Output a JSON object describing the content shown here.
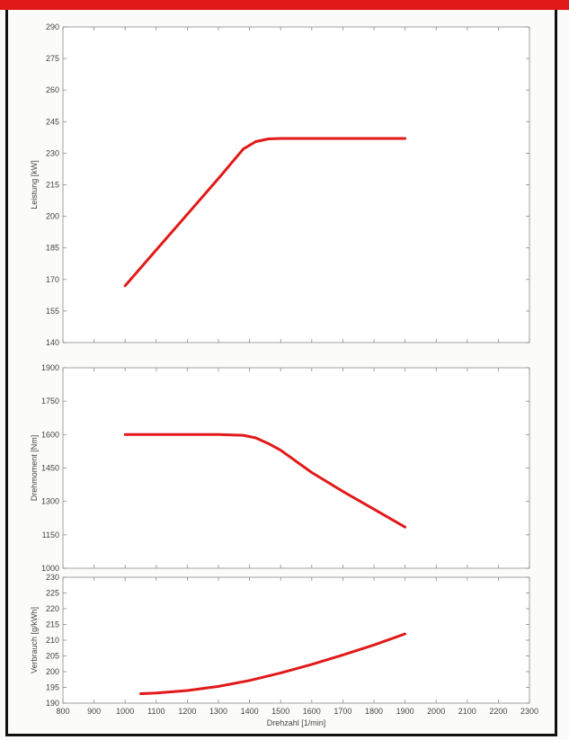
{
  "colors": {
    "curve": "#e11919",
    "axis": "#8a8a8a",
    "text": "#444444",
    "accent_bar": "#e11919"
  },
  "chart_data": [
    {
      "type": "line",
      "title": "",
      "xlabel": "",
      "ylabel": "Leistung [kW]",
      "xlim": [
        800,
        2300
      ],
      "ylim": [
        140,
        290
      ],
      "yticks": [
        140,
        155,
        170,
        185,
        200,
        215,
        230,
        245,
        260,
        275,
        290
      ],
      "grid": false,
      "series": [
        {
          "x": [
            1000,
            1100,
            1200,
            1300,
            1380,
            1420,
            1460,
            1500,
            1600,
            1700,
            1800,
            1900
          ],
          "y": [
            167,
            184,
            201,
            218,
            232,
            235.5,
            236.8,
            237,
            237,
            237,
            237,
            237
          ]
        }
      ]
    },
    {
      "type": "line",
      "title": "",
      "xlabel": "",
      "ylabel": "Drehmoment [Nm]",
      "xlim": [
        800,
        2300
      ],
      "ylim": [
        1000,
        1900
      ],
      "yticks": [
        1000,
        1150,
        1300,
        1450,
        1600,
        1750,
        1900
      ],
      "grid": false,
      "series": [
        {
          "x": [
            1000,
            1100,
            1200,
            1300,
            1380,
            1420,
            1460,
            1500,
            1600,
            1700,
            1800,
            1900
          ],
          "y": [
            1600,
            1600,
            1600,
            1600,
            1597,
            1585,
            1560,
            1530,
            1430,
            1345,
            1265,
            1185
          ]
        }
      ]
    },
    {
      "type": "line",
      "title": "",
      "xlabel": "Drehzahl [1/min]",
      "ylabel": "Verbrauch [g/kWh]",
      "xlim": [
        800,
        2300
      ],
      "ylim": [
        190,
        230
      ],
      "yticks": [
        190,
        195,
        200,
        205,
        210,
        215,
        220,
        225,
        230
      ],
      "xticks": [
        800,
        900,
        1000,
        1100,
        1200,
        1300,
        1400,
        1500,
        1600,
        1700,
        1800,
        1900,
        2000,
        2100,
        2200,
        2300
      ],
      "grid": false,
      "series": [
        {
          "x": [
            1050,
            1100,
            1200,
            1300,
            1400,
            1500,
            1600,
            1700,
            1800,
            1900
          ],
          "y": [
            193,
            193.2,
            194,
            195.3,
            197.2,
            199.6,
            202.3,
            205.3,
            208.5,
            212
          ]
        }
      ]
    }
  ]
}
